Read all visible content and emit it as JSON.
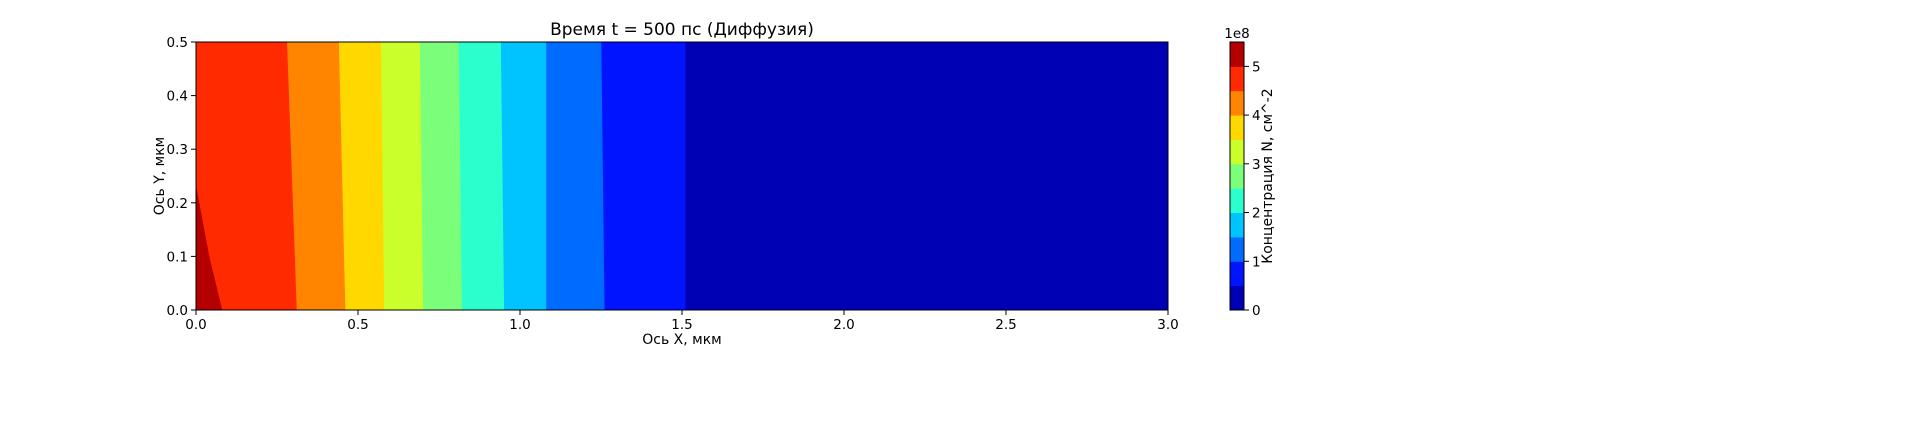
{
  "chart_data": {
    "type": "heatmap",
    "title": "Время t = 500 пс (Диффузия)",
    "xlabel": "Ось X, мкм",
    "ylabel": "Ось Y, мкм",
    "xlim": [
      0.0,
      3.0
    ],
    "ylim": [
      0.0,
      0.5
    ],
    "x_ticks": [
      "0.0",
      "0.5",
      "1.0",
      "1.5",
      "2.0",
      "2.5",
      "3.0"
    ],
    "y_ticks": [
      "0.0",
      "0.1",
      "0.2",
      "0.3",
      "0.4",
      "0.5"
    ],
    "colorbar": {
      "label": "Концентрация N, см^-2",
      "scale_label": "1e8",
      "range": [
        0,
        5.5
      ],
      "ticks": [
        "0",
        "1",
        "2",
        "3",
        "4",
        "5"
      ],
      "levels": [
        0,
        0.5,
        1.0,
        1.5,
        2.0,
        2.5,
        3.0,
        3.5,
        4.0,
        4.5,
        5.0,
        5.5
      ],
      "colors": [
        "#0000b4",
        "#0014ff",
        "#006cff",
        "#00c4ff",
        "#2affcd",
        "#7bff7b",
        "#cbff2b",
        "#ffd800",
        "#ff8400",
        "#ff2a00",
        "#b40000"
      ]
    },
    "regions": [
      {
        "level_index": 10,
        "boundary": [
          [
            0.0,
            0.23
          ],
          [
            0.04,
            0.1
          ],
          [
            0.08,
            0.0
          ]
        ]
      },
      {
        "level_index": 9,
        "boundary": [
          [
            0.28,
            0.5
          ],
          [
            0.31,
            0.0
          ]
        ]
      },
      {
        "level_index": 8,
        "boundary": [
          [
            0.44,
            0.5
          ],
          [
            0.46,
            0.0
          ]
        ]
      },
      {
        "level_index": 7,
        "boundary": [
          [
            0.57,
            0.5
          ],
          [
            0.58,
            0.0
          ]
        ]
      },
      {
        "level_index": 6,
        "boundary": [
          [
            0.69,
            0.5
          ],
          [
            0.7,
            0.0
          ]
        ]
      },
      {
        "level_index": 5,
        "boundary": [
          [
            0.81,
            0.5
          ],
          [
            0.82,
            0.0
          ]
        ]
      },
      {
        "level_index": 4,
        "boundary": [
          [
            0.94,
            0.5
          ],
          [
            0.95,
            0.0
          ]
        ]
      },
      {
        "level_index": 3,
        "boundary": [
          [
            1.08,
            0.5
          ],
          [
            1.08,
            0.0
          ]
        ]
      },
      {
        "level_index": 2,
        "boundary": [
          [
            1.25,
            0.5
          ],
          [
            1.26,
            0.0
          ]
        ]
      },
      {
        "level_index": 1,
        "boundary": [
          [
            1.51,
            0.5
          ],
          [
            1.51,
            0.0
          ]
        ]
      },
      {
        "level_index": 0,
        "boundary": [
          [
            3.0,
            0.5
          ],
          [
            3.0,
            0.0
          ]
        ]
      }
    ]
  }
}
